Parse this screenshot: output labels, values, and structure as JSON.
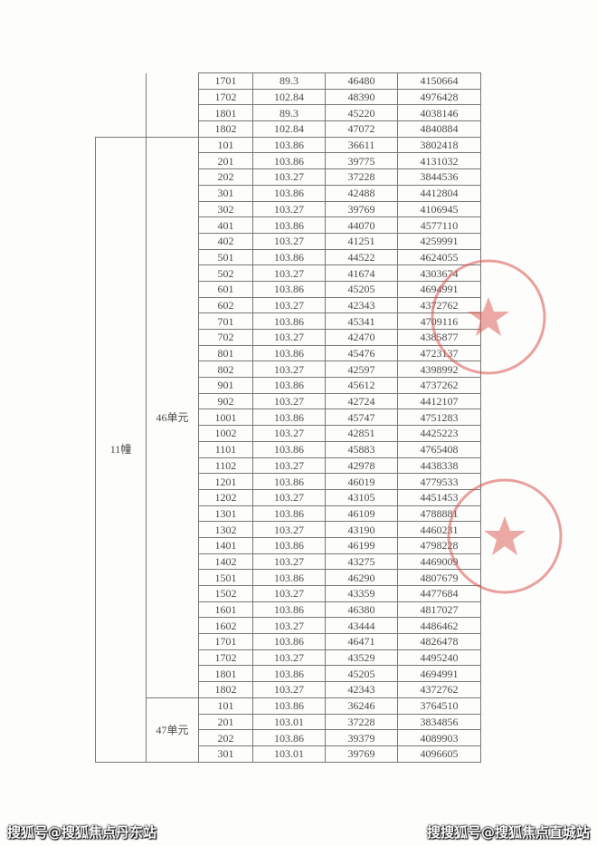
{
  "table": {
    "top_rows": [
      [
        "1701",
        "89.3",
        "46480",
        "4150664"
      ],
      [
        "1702",
        "102.84",
        "48390",
        "4976428"
      ],
      [
        "1801",
        "89.3",
        "45220",
        "4038146"
      ],
      [
        "1802",
        "102.84",
        "47072",
        "4840884"
      ]
    ],
    "building": "11幢",
    "units": [
      {
        "name": "46单元",
        "rows": [
          [
            "101",
            "103.86",
            "36611",
            "3802418"
          ],
          [
            "201",
            "103.86",
            "39775",
            "4131032"
          ],
          [
            "202",
            "103.27",
            "37228",
            "3844536"
          ],
          [
            "301",
            "103.86",
            "42488",
            "4412804"
          ],
          [
            "302",
            "103.27",
            "39769",
            "4106945"
          ],
          [
            "401",
            "103.86",
            "44070",
            "4577110"
          ],
          [
            "402",
            "103.27",
            "41251",
            "4259991"
          ],
          [
            "501",
            "103.86",
            "44522",
            "4624055"
          ],
          [
            "502",
            "103.27",
            "41674",
            "4303674"
          ],
          [
            "601",
            "103.86",
            "45205",
            "4694991"
          ],
          [
            "602",
            "103.27",
            "42343",
            "4372762"
          ],
          [
            "701",
            "103.86",
            "45341",
            "4709116"
          ],
          [
            "702",
            "103.27",
            "42470",
            "4385877"
          ],
          [
            "801",
            "103.86",
            "45476",
            "4723137"
          ],
          [
            "802",
            "103.27",
            "42597",
            "4398992"
          ],
          [
            "901",
            "103.86",
            "45612",
            "4737262"
          ],
          [
            "902",
            "103.27",
            "42724",
            "4412107"
          ],
          [
            "1001",
            "103.86",
            "45747",
            "4751283"
          ],
          [
            "1002",
            "103.27",
            "42851",
            "4425223"
          ],
          [
            "1101",
            "103.86",
            "45883",
            "4765408"
          ],
          [
            "1102",
            "103.27",
            "42978",
            "4438338"
          ],
          [
            "1201",
            "103.86",
            "46019",
            "4779533"
          ],
          [
            "1202",
            "103.27",
            "43105",
            "4451453"
          ],
          [
            "1301",
            "103.86",
            "46109",
            "4788881"
          ],
          [
            "1302",
            "103.27",
            "43190",
            "4460231"
          ],
          [
            "1401",
            "103.86",
            "46199",
            "4798228"
          ],
          [
            "1402",
            "103.27",
            "43275",
            "4469009"
          ],
          [
            "1501",
            "103.86",
            "46290",
            "4807679"
          ],
          [
            "1502",
            "103.27",
            "43359",
            "4477684"
          ],
          [
            "1601",
            "103.86",
            "46380",
            "4817027"
          ],
          [
            "1602",
            "103.27",
            "43444",
            "4486462"
          ],
          [
            "1701",
            "103.86",
            "46471",
            "4826478"
          ],
          [
            "1702",
            "103.27",
            "43529",
            "4495240"
          ],
          [
            "1801",
            "103.86",
            "45205",
            "4694991"
          ],
          [
            "1802",
            "103.27",
            "42343",
            "4372762"
          ]
        ]
      },
      {
        "name": "47单元",
        "rows": [
          [
            "101",
            "103.86",
            "36246",
            "3764510"
          ],
          [
            "201",
            "103.01",
            "37228",
            "3834856"
          ],
          [
            "202",
            "103.86",
            "39379",
            "4089903"
          ],
          [
            "301",
            "103.01",
            "39769",
            "4096605"
          ]
        ]
      }
    ]
  },
  "stamp_color": "#d9534f",
  "watermarks": {
    "left": "搜狐号@搜狐焦点丹东站",
    "right": "搜搜狐号@搜狐焦点直城站"
  }
}
